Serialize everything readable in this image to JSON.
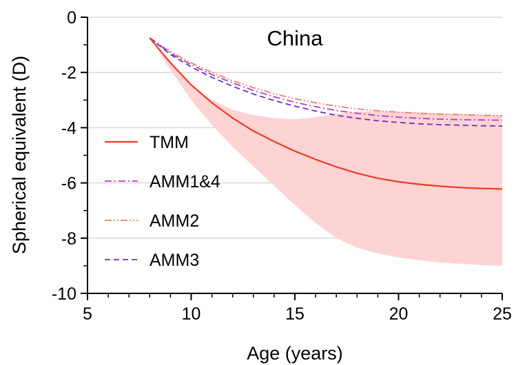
{
  "chart_data": {
    "type": "line",
    "title": "",
    "annotation": "China",
    "xlabel": "Age (years)",
    "ylabel": "Spherical equivalent (D)",
    "xlim": [
      5,
      25
    ],
    "ylim": [
      -10,
      0
    ],
    "xticks": [
      5,
      10,
      15,
      20,
      25
    ],
    "yticks": [
      0,
      -2,
      -4,
      -6,
      -8,
      -10
    ],
    "grid": "horizontal",
    "legend_position": "left",
    "series": [
      {
        "name": "TMM",
        "style": "solid",
        "color": "#ee3b1e",
        "x": [
          8,
          9,
          10,
          11,
          12,
          13,
          14,
          15,
          16,
          17,
          18,
          19,
          20,
          21,
          22,
          23,
          24,
          25
        ],
        "y": [
          -0.75,
          -1.65,
          -2.45,
          -3.1,
          -3.65,
          -4.12,
          -4.5,
          -4.85,
          -5.15,
          -5.42,
          -5.65,
          -5.83,
          -5.96,
          -6.05,
          -6.12,
          -6.17,
          -6.2,
          -6.22
        ]
      },
      {
        "name": "AMM1&4",
        "style": "dash-dot",
        "color": "#b23fb8",
        "x": [
          8,
          9,
          10,
          11,
          12,
          13,
          14,
          15,
          16,
          17,
          18,
          19,
          20,
          21,
          22,
          23,
          24,
          25
        ],
        "y": [
          -0.75,
          -1.3,
          -1.72,
          -2.08,
          -2.38,
          -2.65,
          -2.88,
          -3.08,
          -3.24,
          -3.38,
          -3.48,
          -3.56,
          -3.62,
          -3.66,
          -3.69,
          -3.71,
          -3.72,
          -3.73
        ]
      },
      {
        "name": "AMM2",
        "style": "dash-dot-dot",
        "color": "#e8806e",
        "x": [
          8,
          9,
          10,
          11,
          12,
          13,
          14,
          15,
          16,
          17,
          18,
          19,
          20,
          21,
          22,
          23,
          24,
          25
        ],
        "y": [
          -0.75,
          -1.25,
          -1.65,
          -2.0,
          -2.3,
          -2.55,
          -2.77,
          -2.95,
          -3.1,
          -3.22,
          -3.32,
          -3.39,
          -3.44,
          -3.48,
          -3.51,
          -3.53,
          -3.55,
          -3.56
        ]
      },
      {
        "name": "AMM3",
        "style": "dashed",
        "color": "#6a2fc4",
        "x": [
          8,
          9,
          10,
          11,
          12,
          13,
          14,
          15,
          16,
          17,
          18,
          19,
          20,
          21,
          22,
          23,
          24,
          25
        ],
        "y": [
          -0.75,
          -1.35,
          -1.8,
          -2.18,
          -2.5,
          -2.78,
          -3.02,
          -3.22,
          -3.4,
          -3.55,
          -3.66,
          -3.75,
          -3.81,
          -3.86,
          -3.89,
          -3.91,
          -3.93,
          -3.94
        ]
      }
    ],
    "band": {
      "color": "#fdd3d3",
      "x": [
        8,
        9,
        10,
        11,
        12,
        13,
        14,
        15,
        16,
        17,
        18,
        19,
        20,
        21,
        22,
        23,
        24,
        25
      ],
      "upper": [
        -0.75,
        -1.6,
        -2.5,
        -3.0,
        -3.35,
        -3.55,
        -3.65,
        -3.7,
        -3.62,
        -3.5,
        -3.42,
        -3.4,
        -3.42,
        -3.45,
        -3.48,
        -3.5,
        -3.53,
        -3.55
      ],
      "lower": [
        -0.75,
        -1.9,
        -3.0,
        -3.9,
        -4.7,
        -5.4,
        -6.1,
        -6.8,
        -7.45,
        -8.0,
        -8.35,
        -8.55,
        -8.7,
        -8.8,
        -8.88,
        -8.93,
        -8.97,
        -9.0
      ]
    }
  }
}
